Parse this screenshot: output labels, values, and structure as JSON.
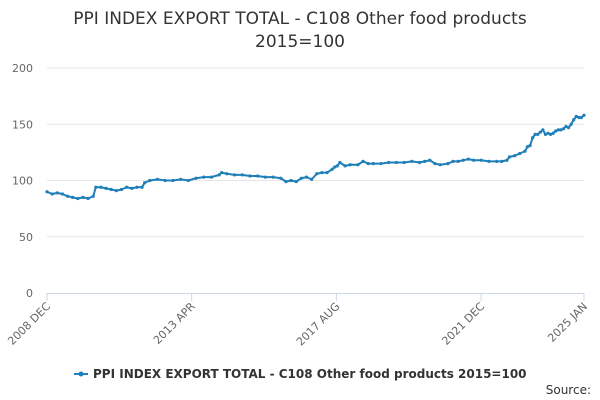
{
  "chart_data": {
    "type": "line",
    "title_lines": [
      "PPI INDEX EXPORT TOTAL - C108 Other food products",
      "2015=100"
    ],
    "xlabel": "",
    "ylabel": "",
    "ylim": [
      0,
      200
    ],
    "yticks": [
      0,
      50,
      100,
      150,
      200
    ],
    "x_range": [
      2008.917,
      2025.0
    ],
    "x_ticks": [
      {
        "label": "2008 DEC",
        "x": 2008.917
      },
      {
        "label": "2013 APR",
        "x": 2013.25
      },
      {
        "label": "2017 AUG",
        "x": 2017.583
      },
      {
        "label": "2021 DEC",
        "x": 2021.917
      },
      {
        "label": "2025 JAN",
        "x": 2025.0
      }
    ],
    "grid": true,
    "legend_position": "bottom-center",
    "series": [
      {
        "name": "PPI INDEX EXPORT TOTAL - C108 Other food products 2015=100",
        "color": "#1f7fb8",
        "points": [
          [
            2008.917,
            90
          ],
          [
            2009.083,
            88
          ],
          [
            2009.25,
            89
          ],
          [
            2009.417,
            88
          ],
          [
            2009.583,
            86
          ],
          [
            2009.75,
            85
          ],
          [
            2009.917,
            84
          ],
          [
            2010.083,
            85
          ],
          [
            2010.25,
            84
          ],
          [
            2010.417,
            86
          ],
          [
            2010.5,
            94
          ],
          [
            2010.667,
            94
          ],
          [
            2010.833,
            93
          ],
          [
            2011.0,
            92
          ],
          [
            2011.167,
            91
          ],
          [
            2011.333,
            92
          ],
          [
            2011.5,
            94
          ],
          [
            2011.667,
            93
          ],
          [
            2011.833,
            94
          ],
          [
            2012.0,
            94
          ],
          [
            2012.083,
            98
          ],
          [
            2012.25,
            100
          ],
          [
            2012.5,
            101
          ],
          [
            2012.75,
            100
          ],
          [
            2013.0,
            100
          ],
          [
            2013.25,
            101
          ],
          [
            2013.5,
            100
          ],
          [
            2013.75,
            102
          ],
          [
            2014.0,
            103
          ],
          [
            2014.25,
            103
          ],
          [
            2014.5,
            105
          ],
          [
            2014.583,
            107
          ],
          [
            2014.75,
            106
          ],
          [
            2015.0,
            105
          ],
          [
            2015.25,
            105
          ],
          [
            2015.5,
            104
          ],
          [
            2015.75,
            104
          ],
          [
            2016.0,
            103
          ],
          [
            2016.25,
            103
          ],
          [
            2016.5,
            102
          ],
          [
            2016.667,
            99
          ],
          [
            2016.833,
            100
          ],
          [
            2017.0,
            99
          ],
          [
            2017.167,
            102
          ],
          [
            2017.333,
            103
          ],
          [
            2017.5,
            101
          ],
          [
            2017.667,
            106
          ],
          [
            2017.833,
            107
          ],
          [
            2018.0,
            107
          ],
          [
            2018.167,
            110
          ],
          [
            2018.25,
            112
          ],
          [
            2018.333,
            113
          ],
          [
            2018.417,
            116
          ],
          [
            2018.583,
            113
          ],
          [
            2018.75,
            114
          ],
          [
            2019.0,
            114
          ],
          [
            2019.167,
            117
          ],
          [
            2019.333,
            115
          ],
          [
            2019.5,
            115
          ],
          [
            2019.75,
            115
          ],
          [
            2020.0,
            116
          ],
          [
            2020.25,
            116
          ],
          [
            2020.5,
            116
          ],
          [
            2020.75,
            117
          ],
          [
            2021.0,
            116
          ],
          [
            2021.167,
            117
          ],
          [
            2021.333,
            118
          ],
          [
            2021.5,
            115
          ],
          [
            2021.667,
            114
          ],
          [
            2021.917,
            115
          ],
          [
            2022.083,
            117
          ],
          [
            2022.25,
            117
          ],
          [
            2022.417,
            118
          ],
          [
            2022.583,
            119
          ],
          [
            2022.75,
            118
          ],
          [
            2023.0,
            118
          ],
          [
            2023.25,
            117
          ],
          [
            2023.5,
            117
          ],
          [
            2023.667,
            117
          ],
          [
            2023.833,
            118
          ],
          [
            2023.917,
            121
          ],
          [
            2024.083,
            122
          ],
          [
            2024.25,
            124
          ],
          [
            2024.417,
            126
          ],
          [
            2024.5,
            130
          ],
          [
            2024.583,
            131
          ],
          [
            2024.667,
            138
          ],
          [
            2024.75,
            141
          ],
          [
            2024.833,
            141
          ],
          [
            2024.917,
            143
          ],
          [
            2025.0,
            145
          ],
          [
            2025.083,
            141
          ],
          [
            2025.167,
            142
          ],
          [
            2025.25,
            141
          ],
          [
            2025.333,
            142
          ],
          [
            2025.417,
            144
          ],
          [
            2025.5,
            145
          ],
          [
            2025.583,
            145
          ],
          [
            2025.667,
            146
          ],
          [
            2025.75,
            148
          ],
          [
            2025.833,
            147
          ],
          [
            2025.917,
            150
          ],
          [
            2026.0,
            154
          ],
          [
            2026.083,
            157
          ],
          [
            2026.167,
            156
          ],
          [
            2026.25,
            156
          ],
          [
            2026.333,
            158
          ]
        ]
      }
    ]
  },
  "footer": {
    "source_label": "Source:"
  }
}
